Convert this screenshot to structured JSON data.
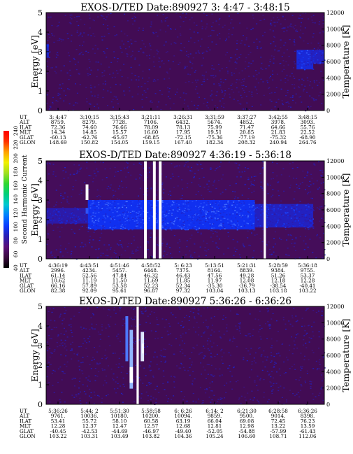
{
  "chart_data": [
    {
      "type": "heatmap",
      "title": "EXOS-D/TED   Date:890927  3: 4:47 - 3:48:15",
      "ylabel": "Energy [eV]",
      "y2label": "Temperature [K]",
      "ylim": [
        0,
        5
      ],
      "y2lim": [
        0,
        12000
      ],
      "yticks": [
        "0",
        "1",
        "2",
        "3",
        "4",
        "5"
      ],
      "y2ticks": [
        "0",
        "2000",
        "4000",
        "6000",
        "8000",
        "10000",
        "12000"
      ],
      "row_labels": [
        "UT",
        "ALT",
        "ILAT",
        "MLT",
        "GLAT",
        "GLON"
      ],
      "columns": [
        [
          "3: 4:47",
          "8759.",
          "72.36",
          "14.34",
          "-60.13",
          "148.69"
        ],
        [
          "3:10:15",
          "8279.",
          "74.60",
          "14.85",
          "-62.76",
          "150.82"
        ],
        [
          "3:15:43",
          "7728.",
          "76.66",
          "15.57",
          "-65.67",
          "154.05"
        ],
        [
          "3:21:11",
          "7106.",
          "78.09",
          "16.60",
          "-68.85",
          "159.15"
        ],
        [
          "3:26:31",
          "6432.",
          "78.13",
          "17.95",
          "-72.15",
          "167.40"
        ],
        [
          "3:31:59",
          "5674.",
          "75.99",
          "19.51",
          "-75.36",
          "182.34"
        ],
        [
          "3:37:27",
          "4852.",
          "71.47",
          "20.85",
          "-77.19",
          "208.32"
        ],
        [
          "3:42:55",
          "3978.",
          "64.66",
          "21.83",
          "-75.32",
          "240.94"
        ],
        [
          "3:48:15",
          "3093.",
          "55.76",
          "22.52",
          "-68.90",
          "264.76"
        ]
      ],
      "noise_level": 0.2,
      "features": [
        {
          "kind": "band",
          "t": [
            0.0,
            0.01
          ],
          "e": [
            2.7,
            3.4
          ],
          "level": 0.5
        },
        {
          "kind": "band",
          "t": [
            0.9,
            0.96
          ],
          "e": [
            2.1,
            3.1
          ],
          "level": 0.55
        },
        {
          "kind": "band",
          "t": [
            0.95,
            1.0
          ],
          "e": [
            2.4,
            3.1
          ],
          "level": 0.5
        }
      ],
      "gaps": []
    },
    {
      "type": "heatmap",
      "title": "EXOS-D/TED   Date:890927  4:36:19 - 5:36:18",
      "ylabel": "Energy [eV]",
      "y2label": "Temperature [K]",
      "ylim": [
        0,
        5
      ],
      "y2lim": [
        0,
        12000
      ],
      "yticks": [
        "0",
        "1",
        "2",
        "3",
        "4",
        "5"
      ],
      "y2ticks": [
        "0",
        "2000",
        "4000",
        "6000",
        "8000",
        "10000",
        "12000"
      ],
      "row_labels": [
        "UT",
        "ALT",
        "ILAT",
        "MLT",
        "GLAT",
        "GLON"
      ],
      "columns": [
        [
          "4:36:19",
          "2996.",
          "61.14",
          "10.62",
          "66.16",
          "82.38"
        ],
        [
          "4:43:51",
          "4234.",
          "52.56",
          "11.19",
          "57.89",
          "92.09"
        ],
        [
          "4:51:46",
          "5457.",
          "47.84",
          "11.50",
          "53.58",
          "95.61"
        ],
        [
          "4:58:52",
          "6448.",
          "46.32",
          "11.69",
          "52.23",
          "96.87"
        ],
        [
          "5: 6:23",
          "7375.",
          "46.43",
          "11.85",
          "52.34",
          "97.32"
        ],
        [
          "5:13:51",
          "8164.",
          "47.56",
          "11.97",
          "-35.30",
          "103.04"
        ],
        [
          "5:21:31",
          "8839.",
          "49.28",
          "12.08",
          "-36.79",
          "103.13"
        ],
        [
          "5:28:59",
          "9384.",
          "51.26",
          "12.18",
          "-38.54",
          "103.18"
        ],
        [
          "5:36:18",
          "9755.",
          "53.37",
          "12.28",
          "-40.41",
          "103.22"
        ]
      ],
      "noise_level": 0.22,
      "features": [
        {
          "kind": "band",
          "t": [
            0.0,
            0.15
          ],
          "e": [
            1.8,
            2.6
          ],
          "level": 0.45
        },
        {
          "kind": "band",
          "t": [
            0.15,
            0.75
          ],
          "e": [
            1.5,
            3.0
          ],
          "level": 0.6
        },
        {
          "kind": "band",
          "t": [
            0.75,
            0.96
          ],
          "e": [
            1.6,
            2.8
          ],
          "level": 0.5
        },
        {
          "kind": "spot",
          "t": [
            0.142,
            0.152
          ],
          "e": [
            3.0,
            3.8
          ],
          "level": 1.0
        },
        {
          "kind": "spot",
          "t": [
            0.142,
            0.152
          ],
          "e": [
            2.3,
            2.6
          ],
          "level": 0.68
        }
      ],
      "gaps": [
        [
          0.352,
          0.362
        ],
        [
          0.384,
          0.394
        ],
        [
          0.405,
          0.415
        ],
        [
          0.782,
          0.79
        ]
      ]
    },
    {
      "type": "heatmap",
      "title": "EXOS-D/TED   Date:890927  5:36:26 - 6:36:26",
      "ylabel": "Energy [eV]",
      "y2label": "Temperature [K]",
      "ylim": [
        0,
        5
      ],
      "y2lim": [
        0,
        12000
      ],
      "yticks": [
        "0",
        "1",
        "2",
        "3",
        "4",
        "5"
      ],
      "y2ticks": [
        "0",
        "2000",
        "4000",
        "6000",
        "8000",
        "10000",
        "12000"
      ],
      "row_labels": [
        "UT",
        "ALT",
        "ILAT",
        "MLT",
        "GLAT",
        "GLON"
      ],
      "columns": [
        [
          "5:36:26",
          "9761.",
          "53.41",
          "12.28",
          "-40.45",
          "103.22"
        ],
        [
          "5:44: 2",
          "10036.",
          "55.72",
          "12.37",
          "-42.53",
          "103.31"
        ],
        [
          "5:51:30",
          "10180.",
          "58.10",
          "12.47",
          "-44.69",
          "103.49"
        ],
        [
          "5:58:58",
          "10200.",
          "60.58",
          "12.57",
          "-46.97",
          "103.82"
        ],
        [
          "6: 6:26",
          "10094.",
          "63.19",
          "12.68",
          "-49.40",
          "104.36"
        ],
        [
          "6:14: 2",
          "9859.",
          "66.04",
          "12.81",
          "-52.05",
          "105.24"
        ],
        [
          "6:21:30",
          "9500.",
          "69.08",
          "12.98",
          "-54.88",
          "106.60"
        ],
        [
          "6:28:58",
          "9014.",
          "72.45",
          "13.22",
          "-57.99",
          "108.71"
        ],
        [
          "6:36:26",
          "8398.",
          "76.23",
          "13.59",
          "-61.43",
          "112.06"
        ]
      ],
      "noise_level": 0.2,
      "features": [
        {
          "kind": "streak",
          "t": [
            0.285,
            0.295
          ],
          "e": [
            2.2,
            4.5
          ],
          "level": 0.75
        },
        {
          "kind": "streak",
          "t": [
            0.3,
            0.312
          ],
          "e": [
            0.8,
            3.8
          ],
          "level": 0.85
        },
        {
          "kind": "streak",
          "t": [
            0.3,
            0.312
          ],
          "e": [
            1.1,
            1.9
          ],
          "level": 1.05
        },
        {
          "kind": "streak",
          "t": [
            0.34,
            0.352
          ],
          "e": [
            2.2,
            3.7
          ],
          "level": 0.95
        },
        {
          "kind": "streak",
          "t": [
            0.345,
            0.35
          ],
          "e": [
            2.6,
            3.1
          ],
          "level": 1.05
        }
      ],
      "gaps": [
        [
          0.325,
          0.333
        ]
      ]
    }
  ],
  "colorbar": {
    "title": "Second Harmonic Current",
    "ticks": [
      "40",
      "60",
      "80",
      "100",
      "120",
      "140",
      "160",
      "180",
      "200",
      "220",
      "240"
    ],
    "colors": [
      "#000000",
      "#3a0a3e",
      "#5a0f7a",
      "#2a1fb5",
      "#0a3cff",
      "#0080ff",
      "#00c8d0",
      "#00d07a",
      "#30d830",
      "#a0e020",
      "#f0f000",
      "#ffa000",
      "#ff3000",
      "#ff0000"
    ]
  }
}
